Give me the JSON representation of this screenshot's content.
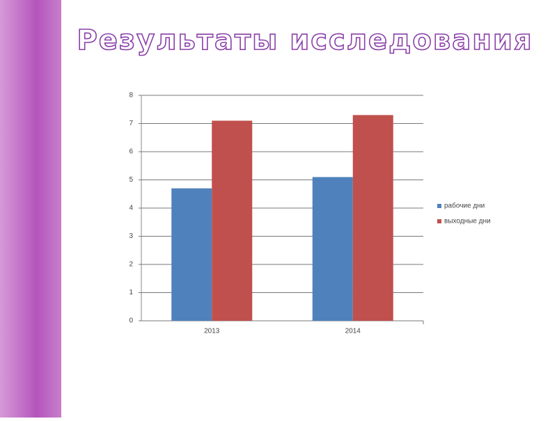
{
  "chart_data": {
    "type": "bar",
    "title": "Результаты исследования",
    "categories": [
      "2013",
      "2014"
    ],
    "series": [
      {
        "name": "рабочие дни",
        "color": "#4f81bd",
        "values": [
          4.7,
          5.1
        ]
      },
      {
        "name": "выходные дни",
        "color": "#c0504d",
        "values": [
          7.1,
          7.3
        ]
      }
    ],
    "ylim": [
      0,
      8
    ],
    "yticks": [
      0,
      1,
      2,
      3,
      4,
      5,
      6,
      7,
      8
    ],
    "grid": true,
    "legend": "right"
  }
}
